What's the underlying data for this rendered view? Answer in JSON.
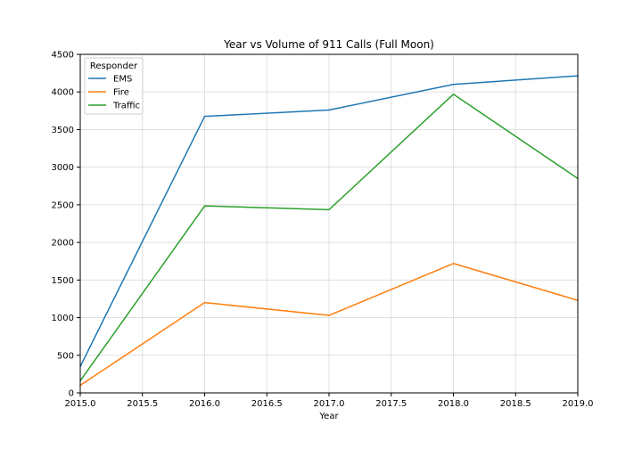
{
  "chart_data": {
    "type": "line",
    "title": "Year vs Volume of 911 Calls (Full Moon)",
    "xlabel": "Year",
    "ylabel": "",
    "x": [
      2015,
      2016,
      2017,
      2018,
      2019
    ],
    "xlim": [
      2015.0,
      2019.0
    ],
    "ylim": [
      0,
      4500
    ],
    "xticks": [
      "2015.0",
      "2015.5",
      "2016.0",
      "2016.5",
      "2017.0",
      "2017.5",
      "2018.0",
      "2018.5",
      "2019.0"
    ],
    "yticks": [
      "0",
      "500",
      "1000",
      "1500",
      "2000",
      "2500",
      "3000",
      "3500",
      "4000",
      "4500"
    ],
    "grid": true,
    "legend": {
      "title": "Responder",
      "placement": "top-left"
    },
    "series": [
      {
        "name": "EMS",
        "color": "#1f77b4",
        "values": [
          350,
          3675,
          3760,
          4100,
          4215
        ]
      },
      {
        "name": "Fire",
        "color": "#ff7f0e",
        "values": [
          100,
          1200,
          1030,
          1720,
          1230
        ]
      },
      {
        "name": "Traffic",
        "color": "#2ca02c",
        "values": [
          160,
          2485,
          2435,
          3970,
          2850
        ]
      }
    ]
  }
}
